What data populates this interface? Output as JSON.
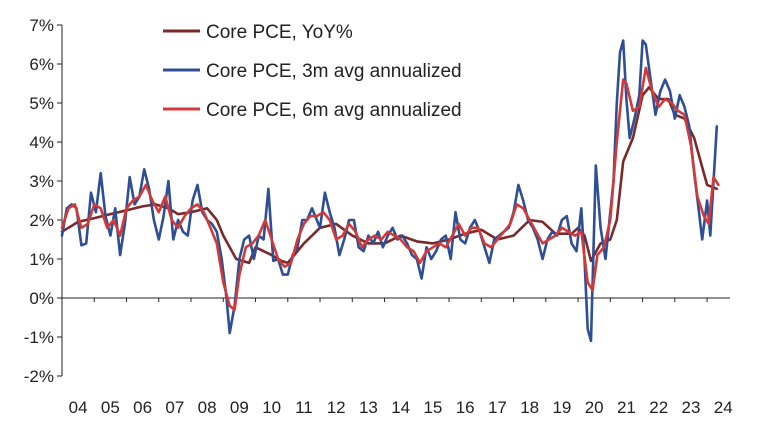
{
  "chart_data": {
    "type": "line",
    "title": "",
    "xlabel": "",
    "ylabel": "",
    "ylim": [
      -2,
      7
    ],
    "xlim": [
      2004.0,
      2024.4
    ],
    "y_ticks": [
      "7%",
      "6%",
      "5%",
      "4%",
      "3%",
      "2%",
      "1%",
      "0%",
      "-1%",
      "-2%"
    ],
    "x_ticks": [
      "04",
      "05",
      "06",
      "07",
      "08",
      "09",
      "10",
      "11",
      "12",
      "13",
      "14",
      "15",
      "16",
      "17",
      "18",
      "19",
      "20",
      "21",
      "22",
      "23",
      "24"
    ],
    "legend_position": "top-left",
    "series": [
      {
        "name": "Core PCE, YoY%",
        "color": "#7b2a2a",
        "points": [
          [
            2004.0,
            1.7
          ],
          [
            2004.5,
            1.95
          ],
          [
            2005.0,
            2.05
          ],
          [
            2005.5,
            2.15
          ],
          [
            2006.0,
            2.25
          ],
          [
            2006.5,
            2.35
          ],
          [
            2006.9,
            2.4
          ],
          [
            2007.3,
            2.3
          ],
          [
            2007.6,
            2.15
          ],
          [
            2008.0,
            2.2
          ],
          [
            2008.5,
            2.3
          ],
          [
            2008.8,
            2.0
          ],
          [
            2009.0,
            1.6
          ],
          [
            2009.4,
            1.0
          ],
          [
            2009.8,
            0.9
          ],
          [
            2010.0,
            1.3
          ],
          [
            2010.5,
            1.1
          ],
          [
            2010.8,
            0.95
          ],
          [
            2011.0,
            0.9
          ],
          [
            2011.5,
            1.4
          ],
          [
            2012.0,
            1.8
          ],
          [
            2012.5,
            1.9
          ],
          [
            2013.0,
            1.6
          ],
          [
            2013.5,
            1.4
          ],
          [
            2014.0,
            1.4
          ],
          [
            2014.5,
            1.6
          ],
          [
            2015.0,
            1.45
          ],
          [
            2015.5,
            1.4
          ],
          [
            2016.0,
            1.5
          ],
          [
            2016.5,
            1.65
          ],
          [
            2017.0,
            1.75
          ],
          [
            2017.5,
            1.5
          ],
          [
            2018.0,
            1.6
          ],
          [
            2018.5,
            2.0
          ],
          [
            2018.9,
            1.95
          ],
          [
            2019.3,
            1.65
          ],
          [
            2019.8,
            1.65
          ],
          [
            2020.0,
            1.8
          ],
          [
            2020.2,
            1.6
          ],
          [
            2020.4,
            0.95
          ],
          [
            2020.7,
            1.4
          ],
          [
            2021.0,
            1.5
          ],
          [
            2021.2,
            2.0
          ],
          [
            2021.4,
            3.5
          ],
          [
            2021.7,
            4.1
          ],
          [
            2022.0,
            5.2
          ],
          [
            2022.2,
            5.4
          ],
          [
            2022.5,
            5.1
          ],
          [
            2022.8,
            5.1
          ],
          [
            2023.0,
            4.7
          ],
          [
            2023.3,
            4.6
          ],
          [
            2023.6,
            4.1
          ],
          [
            2024.0,
            2.9
          ],
          [
            2024.3,
            2.8
          ]
        ]
      },
      {
        "name": "Core PCE, 3m avg annualized",
        "color": "#2e4f93",
        "points": [
          [
            2004.0,
            1.6
          ],
          [
            2004.15,
            2.3
          ],
          [
            2004.3,
            2.4
          ],
          [
            2004.45,
            2.3
          ],
          [
            2004.6,
            1.35
          ],
          [
            2004.75,
            1.4
          ],
          [
            2004.9,
            2.7
          ],
          [
            2005.05,
            2.2
          ],
          [
            2005.2,
            3.2
          ],
          [
            2005.35,
            2.1
          ],
          [
            2005.5,
            1.6
          ],
          [
            2005.65,
            2.3
          ],
          [
            2005.8,
            1.1
          ],
          [
            2005.95,
            1.9
          ],
          [
            2006.1,
            3.1
          ],
          [
            2006.25,
            2.4
          ],
          [
            2006.4,
            2.6
          ],
          [
            2006.55,
            3.3
          ],
          [
            2006.7,
            2.8
          ],
          [
            2006.85,
            2.0
          ],
          [
            2007.0,
            1.5
          ],
          [
            2007.15,
            2.1
          ],
          [
            2007.3,
            3.0
          ],
          [
            2007.45,
            1.5
          ],
          [
            2007.6,
            2.0
          ],
          [
            2007.75,
            1.7
          ],
          [
            2007.9,
            1.6
          ],
          [
            2008.05,
            2.5
          ],
          [
            2008.2,
            2.9
          ],
          [
            2008.35,
            2.2
          ],
          [
            2008.5,
            2.0
          ],
          [
            2008.65,
            1.9
          ],
          [
            2008.8,
            1.7
          ],
          [
            2008.95,
            1.0
          ],
          [
            2009.1,
            0.0
          ],
          [
            2009.2,
            -0.9
          ],
          [
            2009.35,
            -0.2
          ],
          [
            2009.5,
            1.0
          ],
          [
            2009.65,
            1.5
          ],
          [
            2009.8,
            1.6
          ],
          [
            2009.95,
            1.0
          ],
          [
            2010.1,
            1.6
          ],
          [
            2010.25,
            1.5
          ],
          [
            2010.4,
            2.8
          ],
          [
            2010.55,
            0.95
          ],
          [
            2010.7,
            1.0
          ],
          [
            2010.85,
            0.6
          ],
          [
            2011.0,
            0.6
          ],
          [
            2011.15,
            1.1
          ],
          [
            2011.3,
            1.3
          ],
          [
            2011.45,
            2.0
          ],
          [
            2011.6,
            2.0
          ],
          [
            2011.75,
            2.3
          ],
          [
            2011.9,
            2.0
          ],
          [
            2012.0,
            1.8
          ],
          [
            2012.15,
            2.7
          ],
          [
            2012.3,
            2.2
          ],
          [
            2012.45,
            1.8
          ],
          [
            2012.6,
            1.1
          ],
          [
            2012.75,
            1.5
          ],
          [
            2012.9,
            2.0
          ],
          [
            2013.05,
            2.0
          ],
          [
            2013.2,
            1.3
          ],
          [
            2013.35,
            1.2
          ],
          [
            2013.5,
            1.6
          ],
          [
            2013.65,
            1.4
          ],
          [
            2013.8,
            1.7
          ],
          [
            2013.95,
            1.3
          ],
          [
            2014.1,
            1.6
          ],
          [
            2014.25,
            1.8
          ],
          [
            2014.4,
            1.5
          ],
          [
            2014.55,
            1.6
          ],
          [
            2014.7,
            1.4
          ],
          [
            2014.85,
            1.1
          ],
          [
            2015.0,
            1.0
          ],
          [
            2015.15,
            0.5
          ],
          [
            2015.3,
            1.3
          ],
          [
            2015.45,
            1.0
          ],
          [
            2015.6,
            1.2
          ],
          [
            2015.75,
            1.5
          ],
          [
            2015.9,
            1.6
          ],
          [
            2016.05,
            1.0
          ],
          [
            2016.2,
            2.2
          ],
          [
            2016.35,
            1.5
          ],
          [
            2016.5,
            1.4
          ],
          [
            2016.65,
            1.8
          ],
          [
            2016.8,
            2.0
          ],
          [
            2016.95,
            1.7
          ],
          [
            2017.1,
            1.3
          ],
          [
            2017.25,
            0.9
          ],
          [
            2017.4,
            1.5
          ],
          [
            2017.55,
            1.6
          ],
          [
            2017.7,
            1.7
          ],
          [
            2017.85,
            1.8
          ],
          [
            2018.0,
            2.2
          ],
          [
            2018.15,
            2.9
          ],
          [
            2018.3,
            2.5
          ],
          [
            2018.45,
            2.0
          ],
          [
            2018.6,
            1.8
          ],
          [
            2018.75,
            1.5
          ],
          [
            2018.9,
            1.0
          ],
          [
            2019.05,
            1.5
          ],
          [
            2019.2,
            1.7
          ],
          [
            2019.35,
            1.6
          ],
          [
            2019.5,
            2.0
          ],
          [
            2019.65,
            2.1
          ],
          [
            2019.8,
            1.4
          ],
          [
            2019.95,
            1.2
          ],
          [
            2020.1,
            2.3
          ],
          [
            2020.2,
            1.0
          ],
          [
            2020.3,
            -0.8
          ],
          [
            2020.4,
            -1.1
          ],
          [
            2020.55,
            3.4
          ],
          [
            2020.7,
            1.8
          ],
          [
            2020.85,
            1.0
          ],
          [
            2020.95,
            1.8
          ],
          [
            2021.1,
            3.0
          ],
          [
            2021.2,
            5.0
          ],
          [
            2021.3,
            6.3
          ],
          [
            2021.4,
            6.6
          ],
          [
            2021.5,
            5.1
          ],
          [
            2021.6,
            4.1
          ],
          [
            2021.75,
            4.6
          ],
          [
            2021.9,
            5.2
          ],
          [
            2022.0,
            6.6
          ],
          [
            2022.1,
            6.5
          ],
          [
            2022.25,
            5.6
          ],
          [
            2022.4,
            4.7
          ],
          [
            2022.55,
            5.3
          ],
          [
            2022.7,
            5.6
          ],
          [
            2022.85,
            5.3
          ],
          [
            2023.0,
            4.6
          ],
          [
            2023.15,
            5.2
          ],
          [
            2023.3,
            4.9
          ],
          [
            2023.45,
            4.4
          ],
          [
            2023.6,
            3.2
          ],
          [
            2023.75,
            2.2
          ],
          [
            2023.85,
            1.5
          ],
          [
            2024.0,
            2.5
          ],
          [
            2024.1,
            1.6
          ],
          [
            2024.3,
            4.4
          ]
        ]
      },
      {
        "name": "Core PCE, 6m avg annualized",
        "color": "#d23a3a",
        "points": [
          [
            2004.0,
            1.8
          ],
          [
            2004.2,
            2.3
          ],
          [
            2004.4,
            2.4
          ],
          [
            2004.6,
            1.8
          ],
          [
            2004.8,
            1.9
          ],
          [
            2005.0,
            2.4
          ],
          [
            2005.2,
            2.3
          ],
          [
            2005.4,
            1.8
          ],
          [
            2005.6,
            2.0
          ],
          [
            2005.8,
            1.6
          ],
          [
            2006.0,
            2.3
          ],
          [
            2006.2,
            2.5
          ],
          [
            2006.4,
            2.6
          ],
          [
            2006.6,
            2.9
          ],
          [
            2006.8,
            2.5
          ],
          [
            2007.0,
            2.2
          ],
          [
            2007.2,
            2.6
          ],
          [
            2007.4,
            2.0
          ],
          [
            2007.6,
            1.8
          ],
          [
            2007.8,
            2.1
          ],
          [
            2008.0,
            2.3
          ],
          [
            2008.2,
            2.4
          ],
          [
            2008.4,
            2.2
          ],
          [
            2008.6,
            1.8
          ],
          [
            2008.8,
            1.4
          ],
          [
            2009.0,
            0.4
          ],
          [
            2009.2,
            -0.2
          ],
          [
            2009.35,
            -0.3
          ],
          [
            2009.5,
            0.6
          ],
          [
            2009.7,
            1.3
          ],
          [
            2009.9,
            1.4
          ],
          [
            2010.1,
            1.6
          ],
          [
            2010.3,
            2.0
          ],
          [
            2010.5,
            1.5
          ],
          [
            2010.7,
            1.0
          ],
          [
            2010.9,
            0.8
          ],
          [
            2011.1,
            0.9
          ],
          [
            2011.3,
            1.5
          ],
          [
            2011.5,
            1.9
          ],
          [
            2011.7,
            2.1
          ],
          [
            2011.9,
            2.1
          ],
          [
            2012.1,
            2.2
          ],
          [
            2012.3,
            2.0
          ],
          [
            2012.5,
            1.5
          ],
          [
            2012.7,
            1.6
          ],
          [
            2012.9,
            1.9
          ],
          [
            2013.1,
            1.7
          ],
          [
            2013.3,
            1.3
          ],
          [
            2013.5,
            1.5
          ],
          [
            2013.7,
            1.6
          ],
          [
            2013.9,
            1.5
          ],
          [
            2014.1,
            1.7
          ],
          [
            2014.3,
            1.6
          ],
          [
            2014.5,
            1.5
          ],
          [
            2014.7,
            1.3
          ],
          [
            2014.9,
            1.2
          ],
          [
            2015.1,
            0.9
          ],
          [
            2015.3,
            1.2
          ],
          [
            2015.5,
            1.3
          ],
          [
            2015.7,
            1.4
          ],
          [
            2015.9,
            1.3
          ],
          [
            2016.1,
            1.6
          ],
          [
            2016.3,
            1.9
          ],
          [
            2016.5,
            1.6
          ],
          [
            2016.7,
            1.8
          ],
          [
            2016.9,
            1.8
          ],
          [
            2017.1,
            1.4
          ],
          [
            2017.3,
            1.3
          ],
          [
            2017.5,
            1.5
          ],
          [
            2017.7,
            1.7
          ],
          [
            2017.9,
            1.9
          ],
          [
            2018.1,
            2.4
          ],
          [
            2018.3,
            2.3
          ],
          [
            2018.5,
            2.0
          ],
          [
            2018.7,
            1.7
          ],
          [
            2018.9,
            1.4
          ],
          [
            2019.1,
            1.5
          ],
          [
            2019.3,
            1.6
          ],
          [
            2019.5,
            1.8
          ],
          [
            2019.7,
            1.7
          ],
          [
            2019.9,
            1.6
          ],
          [
            2020.1,
            1.7
          ],
          [
            2020.3,
            0.4
          ],
          [
            2020.45,
            0.2
          ],
          [
            2020.6,
            1.1
          ],
          [
            2020.8,
            1.3
          ],
          [
            2021.0,
            2.0
          ],
          [
            2021.2,
            4.0
          ],
          [
            2021.4,
            5.6
          ],
          [
            2021.5,
            5.5
          ],
          [
            2021.7,
            4.8
          ],
          [
            2021.9,
            4.9
          ],
          [
            2022.1,
            5.9
          ],
          [
            2022.3,
            5.3
          ],
          [
            2022.5,
            4.9
          ],
          [
            2022.7,
            5.1
          ],
          [
            2022.9,
            5.0
          ],
          [
            2023.1,
            4.8
          ],
          [
            2023.3,
            4.7
          ],
          [
            2023.5,
            3.9
          ],
          [
            2023.7,
            2.6
          ],
          [
            2023.9,
            2.1
          ],
          [
            2024.05,
            1.9
          ],
          [
            2024.2,
            3.1
          ],
          [
            2024.35,
            2.9
          ]
        ]
      }
    ]
  }
}
